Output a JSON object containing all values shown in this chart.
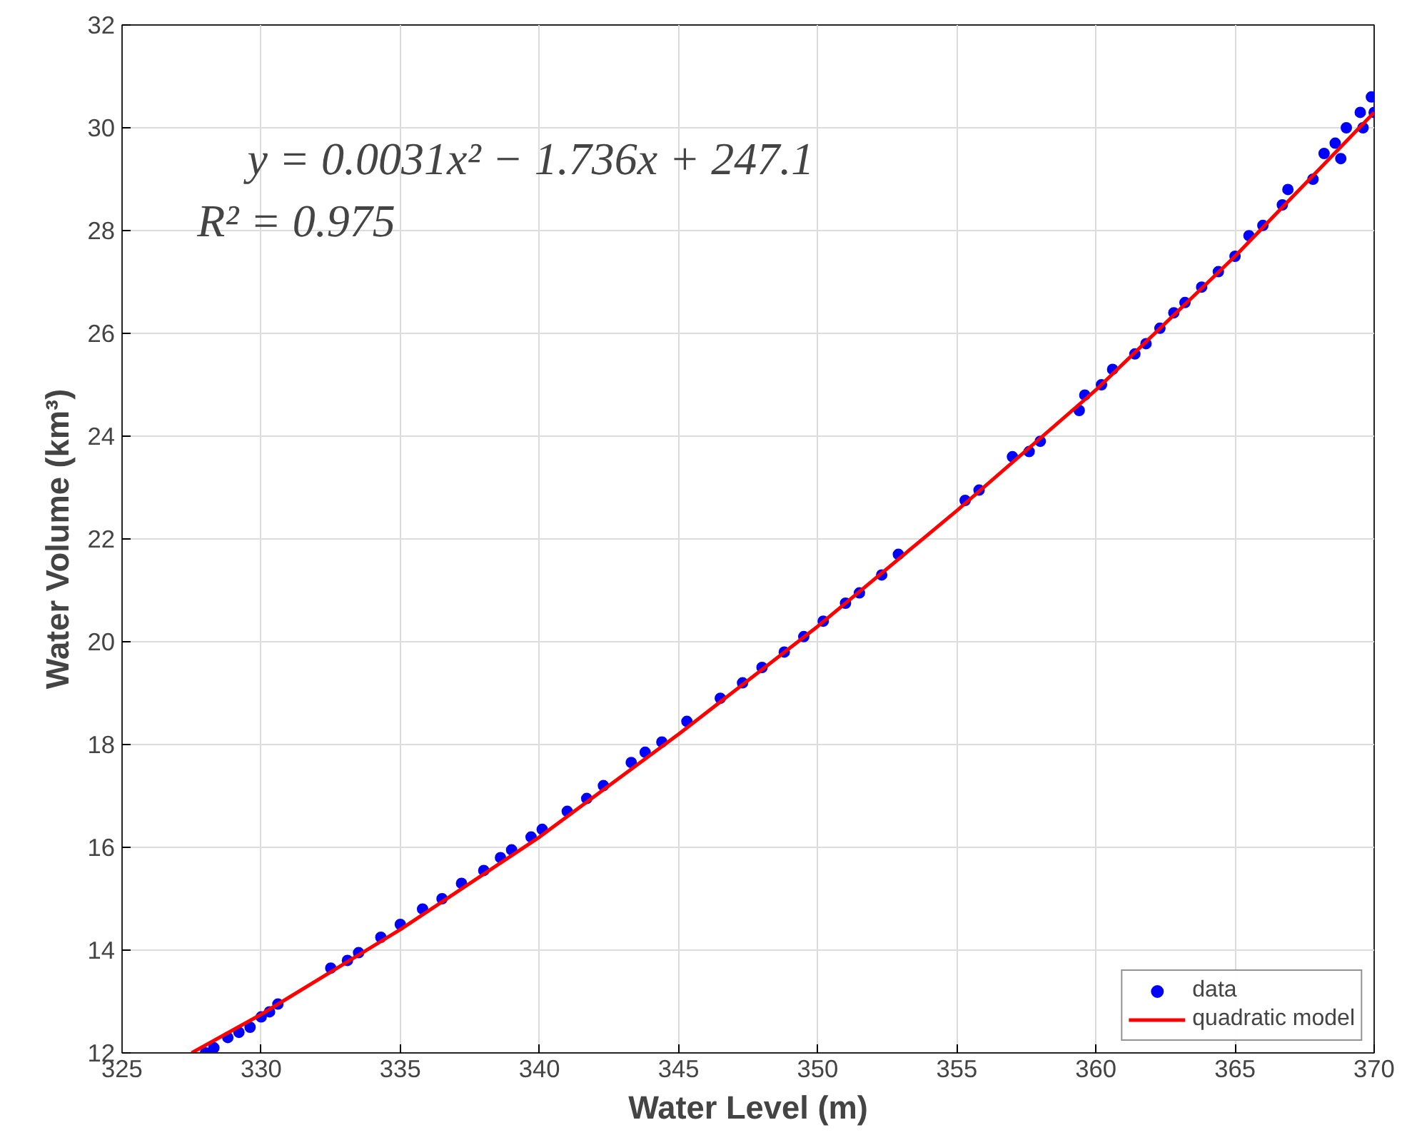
{
  "chart_data": {
    "type": "scatter",
    "xlabel": "Water Level (m)",
    "ylabel": "Water Volume (km³)",
    "xlim": [
      325,
      370
    ],
    "ylim": [
      12,
      32
    ],
    "xticks": [
      325,
      330,
      335,
      340,
      345,
      350,
      355,
      360,
      365,
      370
    ],
    "yticks": [
      12,
      14,
      16,
      18,
      20,
      22,
      24,
      26,
      28,
      30,
      32
    ],
    "grid": true,
    "legend": "bottom right",
    "marker": "circle",
    "annotations": [
      "y = 0.0031x² − 1.736x + 247.1",
      "R² = 0.975"
    ],
    "series": [
      {
        "name": "data",
        "color": "#0000ff",
        "x": [
          328.0,
          328.3,
          328.8,
          329.2,
          329.6,
          330.0,
          330.3,
          330.6,
          332.5,
          333.1,
          333.5,
          334.3,
          335.0,
          335.8,
          336.5,
          337.2,
          338.0,
          338.6,
          339.0,
          339.7,
          340.1,
          341.0,
          341.7,
          342.3,
          343.3,
          343.8,
          344.4,
          345.3,
          346.5,
          347.3,
          348.0,
          348.8,
          349.5,
          350.2,
          351.0,
          351.5,
          352.3,
          352.9,
          355.3,
          355.8,
          357.0,
          357.6,
          358.0,
          359.4,
          359.6,
          360.2,
          360.6,
          361.4,
          361.8,
          362.3,
          362.8,
          363.2,
          363.8,
          364.4,
          365.0,
          365.5,
          366.0,
          366.7,
          366.9,
          367.8,
          368.2,
          368.6,
          368.8,
          369.0,
          369.5,
          369.6,
          369.9,
          370.0
        ],
        "values": [
          12.0,
          12.1,
          12.3,
          12.4,
          12.5,
          12.7,
          12.8,
          12.95,
          13.65,
          13.8,
          13.95,
          14.25,
          14.5,
          14.8,
          15.0,
          15.3,
          15.55,
          15.8,
          15.95,
          16.2,
          16.35,
          16.7,
          16.95,
          17.2,
          17.65,
          17.85,
          18.05,
          18.45,
          18.9,
          19.2,
          19.5,
          19.8,
          20.1,
          20.4,
          20.75,
          20.95,
          21.3,
          21.7,
          22.75,
          22.95,
          23.6,
          23.7,
          23.9,
          24.5,
          24.8,
          25.0,
          25.3,
          25.6,
          25.8,
          26.1,
          26.4,
          26.6,
          26.9,
          27.2,
          27.5,
          27.9,
          28.1,
          28.5,
          28.8,
          29.0,
          29.5,
          29.7,
          29.4,
          30.0,
          30.3,
          30.0,
          30.6,
          30.3
        ]
      },
      {
        "name": "quadratic model",
        "color": "#ff0000",
        "type": "line",
        "marker": "none",
        "x": [
          327.5,
          330,
          335,
          340,
          345,
          350,
          355,
          360,
          365,
          370
        ],
        "values": [
          12.0,
          12.75,
          14.4,
          16.2,
          18.2,
          20.3,
          22.55,
          24.9,
          27.5,
          30.3
        ]
      }
    ]
  }
}
